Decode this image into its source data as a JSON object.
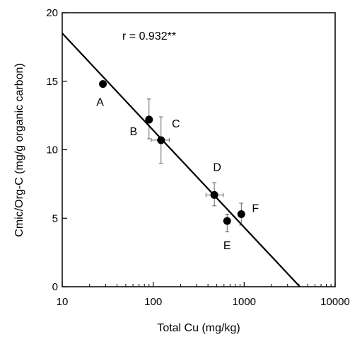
{
  "chart_data": {
    "type": "scatter",
    "xlabel": "Total Cu (mg/kg)",
    "ylabel": "Cmic/Org-C (mg/g organic carbon)",
    "xscale": "log",
    "xlim": [
      10,
      10000
    ],
    "ylim": [
      0,
      20
    ],
    "xticks": [
      10,
      100,
      1000,
      10000
    ],
    "xtick_labels": [
      "10",
      "100",
      "1000",
      "10000"
    ],
    "yticks": [
      0,
      5,
      10,
      15,
      20
    ],
    "ytick_labels": [
      "0",
      "5",
      "10",
      "15",
      "20"
    ],
    "annotation": "r = 0.932**",
    "grid": false,
    "points": [
      {
        "label": "A",
        "x": 28,
        "y": 14.8,
        "xerr": [
          28,
          28
        ],
        "yerr": [
          14.8,
          14.8
        ]
      },
      {
        "label": "B",
        "x": 90,
        "y": 12.2,
        "xerr": [
          85,
          96
        ],
        "yerr": [
          10.8,
          13.7
        ]
      },
      {
        "label": "C",
        "x": 122,
        "y": 10.7,
        "xerr": [
          95,
          150
        ],
        "yerr": [
          9.0,
          12.4
        ]
      },
      {
        "label": "D",
        "x": 470,
        "y": 6.7,
        "xerr": [
          380,
          590
        ],
        "yerr": [
          5.9,
          7.6
        ]
      },
      {
        "label": "E",
        "x": 650,
        "y": 4.8,
        "xerr": [
          620,
          680
        ],
        "yerr": [
          4.0,
          5.3
        ]
      },
      {
        "label": "F",
        "x": 930,
        "y": 5.3,
        "xerr": [
          900,
          960
        ],
        "yerr": [
          4.5,
          6.1
        ]
      }
    ],
    "fit_line": {
      "x": [
        10,
        4100
      ],
      "y": [
        18.5,
        0
      ]
    }
  }
}
